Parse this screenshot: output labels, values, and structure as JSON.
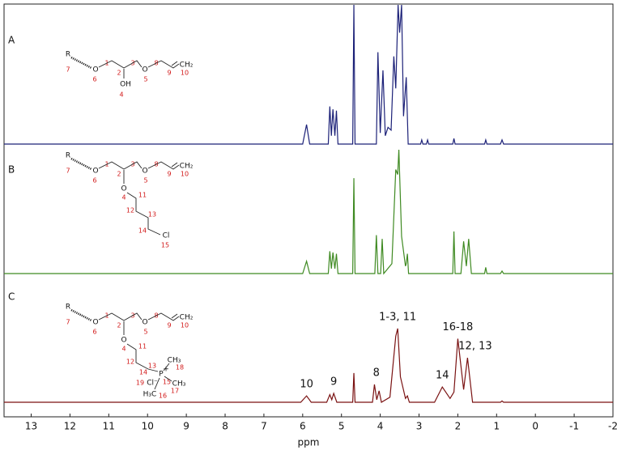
{
  "chart_data": {
    "type": "line",
    "xlabel": "ppm",
    "xlim": [
      13.7,
      -2
    ],
    "xticks": [
      13,
      12,
      11,
      10,
      9,
      8,
      7,
      6,
      5,
      4,
      3,
      2,
      1,
      0,
      -1,
      -2
    ],
    "ylim": [
      0,
      100
    ],
    "series": [
      {
        "name": "A",
        "color": "#1c2178",
        "x": [
          13.7,
          6.0,
          5.9,
          5.82,
          5.34,
          5.3,
          5.26,
          5.22,
          5.17,
          5.13,
          5.09,
          4.71,
          4.68,
          4.65,
          4.1,
          4.06,
          4.0,
          3.93,
          3.87,
          3.8,
          3.72,
          3.65,
          3.6,
          3.54,
          3.5,
          3.45,
          3.4,
          3.33,
          3.28,
          2.96,
          2.93,
          2.9,
          2.81,
          2.78,
          2.75,
          2.13,
          2.1,
          2.07,
          1.31,
          1.28,
          1.25,
          0.9,
          0.86,
          0.82,
          -2
        ],
        "values": [
          0,
          0,
          14,
          0,
          0,
          27,
          6,
          25,
          6,
          24,
          0,
          0,
          100,
          0,
          0,
          66,
          8,
          53,
          6,
          12,
          10,
          63,
          40,
          100,
          80,
          100,
          20,
          48,
          0,
          0,
          3,
          0,
          0,
          3,
          0,
          0,
          4,
          0,
          0,
          3,
          0,
          0,
          3,
          0,
          0
        ],
        "structure": {
          "chain": [
            "R",
            "7",
            "O",
            "6",
            "1",
            "2",
            "3",
            "O",
            "5",
            "8",
            "9",
            "CH₂",
            "10"
          ],
          "side": [
            "OH",
            "4"
          ]
        }
      },
      {
        "name": "B",
        "color": "#3f8a22",
        "x": [
          13.7,
          6.0,
          5.9,
          5.82,
          5.34,
          5.3,
          5.26,
          5.22,
          5.17,
          5.13,
          5.09,
          4.71,
          4.68,
          4.65,
          4.14,
          4.1,
          4.06,
          3.99,
          3.95,
          3.91,
          3.7,
          3.6,
          3.55,
          3.52,
          3.45,
          3.35,
          3.33,
          3.3,
          3.27,
          2.13,
          2.1,
          2.07,
          1.92,
          1.85,
          1.78,
          1.72,
          1.65,
          1.31,
          1.28,
          1.25,
          0.9,
          0.86,
          0.82,
          -2
        ],
        "values": [
          0,
          0,
          10,
          0,
          0,
          18,
          4,
          17,
          4,
          16,
          0,
          0,
          77,
          0,
          0,
          31,
          0,
          0,
          28,
          0,
          8,
          84,
          80,
          100,
          30,
          6,
          8,
          16,
          0,
          0,
          34,
          0,
          0,
          26,
          6,
          28,
          0,
          0,
          5,
          0,
          0,
          2,
          0,
          0
        ],
        "structure": {
          "chain": [
            "R",
            "7",
            "O",
            "6",
            "1",
            "2",
            "3",
            "O",
            "5",
            "8",
            "9",
            "CH₂",
            "10"
          ],
          "side": [
            "O",
            "4",
            "11",
            "12",
            "13",
            "14",
            "Cl",
            "15"
          ]
        }
      },
      {
        "name": "C",
        "color": "#7a1212",
        "x": [
          13.7,
          6.05,
          5.9,
          5.78,
          5.38,
          5.3,
          5.25,
          5.2,
          5.12,
          4.71,
          4.68,
          4.65,
          4.2,
          4.15,
          4.09,
          4.03,
          3.97,
          3.75,
          3.6,
          3.55,
          3.48,
          3.35,
          3.3,
          3.25,
          2.6,
          2.4,
          2.2,
          2.1,
          2.0,
          1.85,
          1.75,
          1.62,
          0.9,
          0.86,
          0.82,
          -2
        ],
        "values": [
          0,
          0,
          5,
          0,
          0,
          6,
          2,
          7,
          0,
          0,
          23,
          0,
          0,
          14,
          2,
          9,
          0,
          4,
          52,
          58,
          20,
          3,
          5,
          0,
          0,
          12,
          3,
          8,
          50,
          10,
          35,
          0,
          0,
          1,
          0,
          0
        ],
        "structure": {
          "chain": [
            "R",
            "7",
            "O",
            "6",
            "1",
            "2",
            "3",
            "O",
            "5",
            "8",
            "9",
            "CH₂",
            "10"
          ],
          "side": [
            "O",
            "4",
            "11",
            "12",
            "13",
            "14",
            "P",
            "+",
            "15",
            "CH₃",
            "18",
            "CH₃",
            "17",
            "Cl⁻",
            "19",
            "H₃C",
            "16"
          ]
        },
        "annotations": [
          {
            "text": "10",
            "x": 5.9
          },
          {
            "text": "9",
            "x": 5.2
          },
          {
            "text": "8",
            "x": 4.1
          },
          {
            "text": "1-3, 11",
            "x": 3.55
          },
          {
            "text": "14",
            "x": 2.4
          },
          {
            "text": "16-18",
            "x": 2.0
          },
          {
            "text": "12, 13",
            "x": 1.55
          }
        ]
      }
    ]
  }
}
